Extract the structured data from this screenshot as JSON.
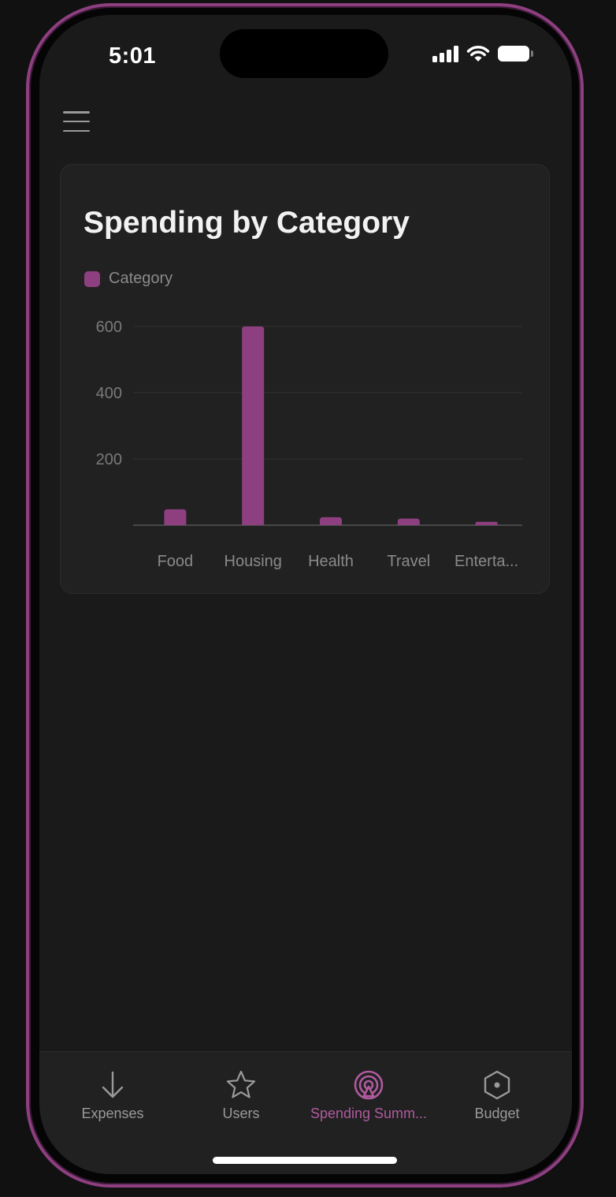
{
  "status_bar": {
    "time": "5:01"
  },
  "header": {
    "menu_icon": "hamburger-menu-icon"
  },
  "card": {
    "title": "Spending by Category"
  },
  "chart_data": {
    "type": "bar",
    "title": "Spending by Category",
    "legend": [
      "Category"
    ],
    "legend_placement": "top-left",
    "categories": [
      "Food",
      "Housing",
      "Health",
      "Travel",
      "Enterta..."
    ],
    "series": [
      {
        "name": "Category",
        "values": [
          48,
          600,
          24,
          20,
          10
        ]
      }
    ],
    "y_ticks": [
      "200",
      "400",
      "600"
    ],
    "y_tick_values": [
      200,
      400,
      600
    ],
    "ylim": [
      0,
      600
    ],
    "grid": true,
    "bar_color": "#8e3f80"
  },
  "bottom_nav": {
    "items": [
      {
        "label": "Expenses",
        "icon": "arrow-down-icon",
        "active": false
      },
      {
        "label": "Users",
        "icon": "star-icon",
        "active": false
      },
      {
        "label": "Spending Summ...",
        "icon": "broadcast-icon",
        "active": true
      },
      {
        "label": "Budget",
        "icon": "hexagon-icon",
        "active": false
      }
    ]
  },
  "colors": {
    "accent": "#8e3f80",
    "active_label": "#b05a9f",
    "background": "#1a1a1a",
    "card": "#212121"
  }
}
